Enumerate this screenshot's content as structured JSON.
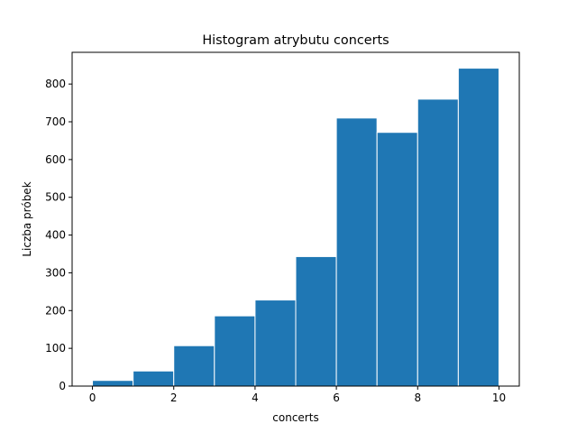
{
  "chart_data": {
    "type": "bar",
    "title": "Histogram atrybutu concerts",
    "xlabel": "concerts",
    "ylabel": "Liczba próbek",
    "bin_edges": [
      0,
      1,
      2,
      3,
      4,
      5,
      6,
      7,
      8,
      9,
      10
    ],
    "values": [
      15,
      40,
      107,
      186,
      228,
      343,
      710,
      672,
      760,
      842
    ],
    "xlim": [
      -0.5,
      10.5
    ],
    "ylim": [
      0,
      884
    ],
    "xticks": [
      0,
      2,
      4,
      6,
      8,
      10
    ],
    "yticks": [
      0,
      100,
      200,
      300,
      400,
      500,
      600,
      700,
      800
    ],
    "grid": false,
    "bar_color": "#1f77b4",
    "edge_color": "#ffffff"
  }
}
